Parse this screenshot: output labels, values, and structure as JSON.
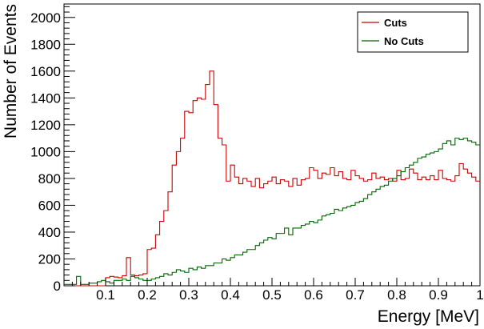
{
  "chart_data": {
    "type": "line",
    "style": "step-histogram",
    "title": "",
    "xlabel": "Energy [MeV]",
    "ylabel": "Number of Events",
    "xlim": [
      0,
      1
    ],
    "ylim": [
      0,
      2100
    ],
    "x_ticks": [
      0.1,
      0.2,
      0.3,
      0.4,
      0.5,
      0.6,
      0.7,
      0.8,
      0.9,
      1
    ],
    "x_tick_labels": [
      "0.1",
      "0.2",
      "0.3",
      "0.4",
      "0.5",
      "0.6",
      "0.7",
      "0.8",
      "0.9",
      "1"
    ],
    "y_ticks": [
      0,
      200,
      400,
      600,
      800,
      1000,
      1200,
      1400,
      1600,
      1800,
      2000
    ],
    "y_tick_labels": [
      "0",
      "200",
      "400",
      "600",
      "800",
      "1000",
      "1200",
      "1400",
      "1600",
      "1800",
      "2000"
    ],
    "grid": false,
    "legend": "top-right",
    "bin_width": 0.01,
    "bin_start": 0,
    "series": [
      {
        "name": "Cuts",
        "color": "#cc0000",
        "values": [
          0,
          0,
          0,
          0,
          0,
          0,
          0,
          0,
          0,
          0,
          60,
          70,
          65,
          60,
          75,
          210,
          80,
          75,
          80,
          90,
          270,
          280,
          380,
          480,
          560,
          700,
          900,
          1000,
          1100,
          1300,
          1290,
          1380,
          1400,
          1390,
          1500,
          1600,
          1350,
          1100,
          1050,
          780,
          900,
          810,
          760,
          800,
          780,
          740,
          800,
          730,
          760,
          780,
          810,
          760,
          790,
          780,
          740,
          800,
          750,
          790,
          800,
          880,
          860,
          800,
          840,
          830,
          880,
          820,
          850,
          800,
          790,
          860,
          820,
          800,
          780,
          790,
          840,
          800,
          810,
          790,
          800,
          780,
          860,
          790,
          800,
          870,
          840,
          790,
          810,
          790,
          820,
          790,
          860,
          800,
          790,
          780,
          820,
          910,
          870,
          840,
          810,
          780
        ]
      },
      {
        "name": "No Cuts",
        "color": "#006600",
        "values": [
          10,
          10,
          10,
          70,
          10,
          10,
          20,
          20,
          30,
          40,
          30,
          20,
          40,
          40,
          50,
          40,
          70,
          60,
          50,
          40,
          40,
          50,
          60,
          70,
          90,
          80,
          100,
          120,
          110,
          100,
          130,
          120,
          140,
          130,
          150,
          150,
          170,
          170,
          200,
          190,
          210,
          230,
          230,
          250,
          270,
          270,
          300,
          320,
          340,
          360,
          350,
          390,
          390,
          430,
          380,
          430,
          430,
          450,
          460,
          480,
          470,
          490,
          520,
          530,
          540,
          570,
          560,
          580,
          590,
          600,
          620,
          630,
          650,
          680,
          700,
          720,
          740,
          750,
          780,
          800,
          820,
          850,
          880,
          900,
          920,
          950,
          960,
          980,
          990,
          1000,
          1020,
          1060,
          1080,
          1050,
          1100,
          1090,
          1100,
          1080,
          1070,
          1050
        ]
      }
    ]
  }
}
